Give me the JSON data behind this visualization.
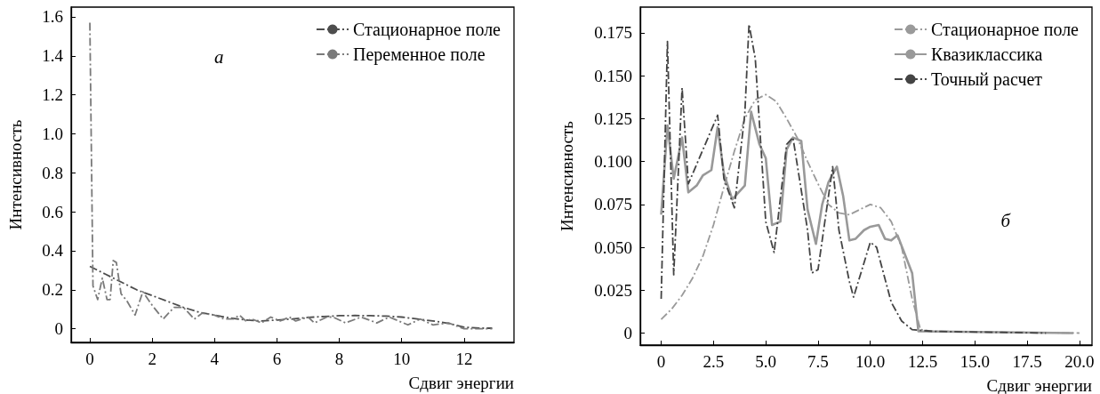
{
  "chart_data": [
    {
      "type": "line",
      "xlabel": "Сдвиг энергии",
      "ylabel": "Интенсивность",
      "annotations": [
        "a"
      ],
      "legend": "top right",
      "grid": false,
      "marker": "none",
      "xlim": [
        -0.6,
        13.6
      ],
      "xticks": [
        0,
        2,
        4,
        6,
        8,
        10,
        12
      ],
      "ylim": [
        -0.07,
        1.65
      ],
      "yticks": [
        0,
        0.2,
        0.4,
        0.6,
        0.8,
        {
          "value": 1.0,
          "label": "1.0"
        },
        1.2,
        1.4,
        1.6
      ],
      "series": [
        {
          "name": "Стационарное поле",
          "color": "#4d4d4d",
          "line_style": "dashdot",
          "x": [
            0,
            0.5,
            1,
            1.5,
            2,
            2.5,
            3,
            3.5,
            4,
            4.5,
            5,
            5.5,
            6,
            6.5,
            7,
            7.5,
            8,
            8.5,
            9,
            9.5,
            10,
            10.5,
            11,
            11.5,
            12,
            12.5,
            12.9
          ],
          "values": [
            0.32,
            0.28,
            0.24,
            0.2,
            0.17,
            0.14,
            0.11,
            0.085,
            0.07,
            0.055,
            0.045,
            0.04,
            0.045,
            0.05,
            0.058,
            0.063,
            0.067,
            0.068,
            0.067,
            0.065,
            0.06,
            0.05,
            0.04,
            0.028,
            0.008,
            0.003,
            0.003
          ]
        },
        {
          "name": "Переменное поле",
          "color": "#7a7a7a",
          "line_style": "dashdot",
          "x": [
            0,
            0.1,
            0.25,
            0.4,
            0.55,
            0.65,
            0.75,
            0.85,
            1.0,
            1.2,
            1.45,
            1.7,
            2.0,
            2.35,
            2.7,
            3.0,
            3.35,
            3.6,
            4.0,
            4.3,
            4.6,
            4.8,
            5.0,
            5.2,
            5.5,
            5.8,
            6.1,
            6.4,
            6.6,
            7.0,
            7.2,
            7.6,
            7.8,
            8.2,
            8.7,
            9.2,
            9.6,
            10.2,
            10.6,
            11.0,
            11.5,
            12.0,
            12.9
          ],
          "values": [
            1.57,
            0.22,
            0.15,
            0.26,
            0.15,
            0.15,
            0.35,
            0.34,
            0.18,
            0.14,
            0.07,
            0.19,
            0.12,
            0.05,
            0.11,
            0.11,
            0.05,
            0.08,
            0.07,
            0.05,
            0.05,
            0.07,
            0.04,
            0.05,
            0.03,
            0.06,
            0.04,
            0.06,
            0.04,
            0.06,
            0.03,
            0.06,
            0.06,
            0.03,
            0.06,
            0.03,
            0.06,
            0.02,
            0.05,
            0.02,
            0.03,
            0.0,
            0.0
          ]
        }
      ]
    },
    {
      "type": "line",
      "xlabel": "Сдвиг энергии",
      "ylabel": "Интенсивность",
      "annotations": [
        "б"
      ],
      "legend": "top right",
      "grid": false,
      "marker": "none",
      "xlim": [
        -1,
        20.6
      ],
      "xticks": [
        0,
        2.5,
        {
          "value": 5,
          "label": "5.0"
        },
        7.5,
        {
          "value": 10,
          "label": "10.0"
        },
        12.5,
        {
          "value": 15,
          "label": "15.0"
        },
        17.5,
        {
          "value": 20,
          "label": "20.0"
        }
      ],
      "ylim": [
        -0.007,
        0.19
      ],
      "yticks": [
        0,
        0.025,
        {
          "value": 0.05,
          "label": "0.050"
        },
        0.075,
        {
          "value": 0.1,
          "label": "0.100"
        },
        0.125,
        {
          "value": 0.15,
          "label": "0.150"
        },
        0.175
      ],
      "series": [
        {
          "name": "Стационарное поле",
          "color": "#9a9a9a",
          "line_style": "dashdot",
          "x": [
            0,
            0.5,
            1,
            1.5,
            2,
            2.5,
            3,
            3.5,
            4,
            4.5,
            5,
            5.5,
            6,
            6.5,
            7,
            7.5,
            8,
            8.5,
            9,
            9.5,
            10,
            10.5,
            11,
            11.5,
            12,
            12.4,
            13,
            20
          ],
          "values": [
            0.008,
            0.014,
            0.022,
            0.032,
            0.045,
            0.063,
            0.085,
            0.106,
            0.125,
            0.136,
            0.139,
            0.135,
            0.125,
            0.114,
            0.1,
            0.087,
            0.075,
            0.07,
            0.069,
            0.072,
            0.075,
            0.073,
            0.065,
            0.05,
            0.02,
            0.002,
            0.001,
            0.0
          ]
        },
        {
          "name": "Квазиклассика",
          "color": "#999999",
          "line_style": "solid",
          "x": [
            0,
            0.3,
            0.6,
            1.0,
            1.3,
            1.7,
            2.0,
            2.4,
            2.7,
            3.0,
            3.4,
            4.0,
            4.3,
            4.7,
            5.0,
            5.3,
            5.7,
            6.0,
            6.3,
            6.7,
            7.0,
            7.4,
            7.7,
            8.0,
            8.4,
            8.7,
            9.0,
            9.3,
            9.7,
            10.0,
            10.4,
            10.7,
            11.0,
            11.3,
            12.0,
            12.3,
            19.7
          ],
          "values": [
            0.069,
            0.121,
            0.09,
            0.114,
            0.082,
            0.086,
            0.092,
            0.095,
            0.12,
            0.093,
            0.078,
            0.086,
            0.129,
            0.11,
            0.102,
            0.063,
            0.065,
            0.107,
            0.114,
            0.112,
            0.072,
            0.052,
            0.075,
            0.088,
            0.097,
            0.08,
            0.054,
            0.055,
            0.06,
            0.062,
            0.063,
            0.055,
            0.054,
            0.057,
            0.035,
            0.001,
            0.0
          ]
        },
        {
          "name": "Точный расчет",
          "color": "#444444",
          "line_style": "dashdot",
          "x": [
            0,
            0.3,
            0.6,
            1.0,
            1.3,
            2.7,
            3.0,
            3.5,
            4.0,
            4.2,
            4.5,
            5.0,
            5.4,
            6.0,
            6.3,
            7.0,
            7.2,
            7.5,
            8.2,
            8.5,
            9.0,
            9.2,
            10.0,
            10.3,
            11.0,
            11.5,
            12.0,
            13.0,
            18.4
          ],
          "values": [
            0.02,
            0.17,
            0.034,
            0.143,
            0.087,
            0.127,
            0.09,
            0.073,
            0.128,
            0.18,
            0.16,
            0.065,
            0.047,
            0.11,
            0.114,
            0.06,
            0.035,
            0.037,
            0.097,
            0.06,
            0.03,
            0.021,
            0.053,
            0.05,
            0.018,
            0.007,
            0.002,
            0.001,
            0.0
          ]
        }
      ]
    }
  ]
}
